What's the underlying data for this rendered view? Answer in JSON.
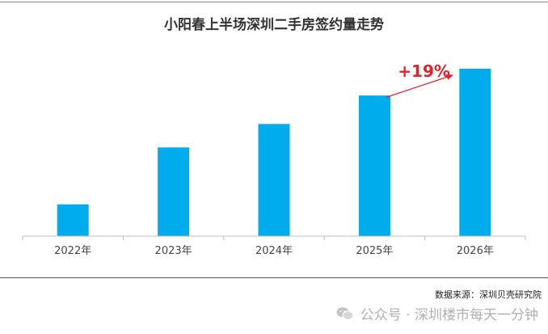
{
  "chart_data": {
    "type": "bar",
    "title": "小阳春上半场深圳二手房签约量走势",
    "categories": [
      "2022年",
      "2023年",
      "2024年",
      "2025年",
      "2026年"
    ],
    "values": [
      19,
      53,
      67,
      84,
      100
    ],
    "ylim": [
      0,
      100
    ],
    "bar_color": "#00ACEB",
    "annotation": {
      "text": "+19%",
      "color": "#E8202A"
    }
  },
  "footer": {
    "source": "数据来源：深圳贝壳研究院",
    "watermark": "公众号 · 深圳楼市每天一分钟"
  },
  "icons": {
    "watermark_icon": "wechat-icon"
  }
}
